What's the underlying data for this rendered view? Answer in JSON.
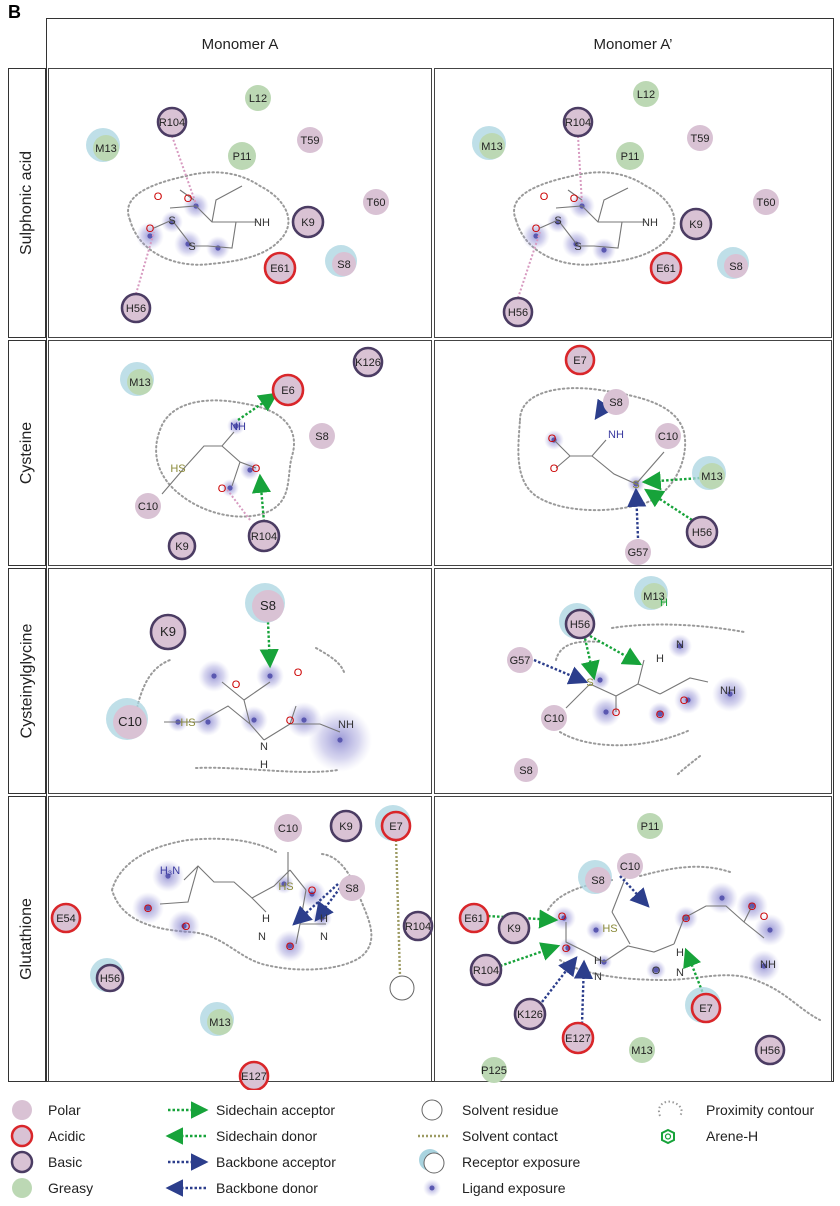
{
  "panel_letter": "B",
  "columns": [
    "Monomer A",
    "Monomer A’"
  ],
  "rows": [
    "Sulphonic acid",
    "Cysteine",
    "Cysteinylglycine",
    "Glutathione"
  ],
  "colors": {
    "polar": "#d9c2d4",
    "acidic_ring": "#d9262a",
    "basic_ring": "#4b3c63",
    "greasy": "#bcd8b4",
    "receptor_exposure": "#a9d4e0",
    "ligand_exposure": "#7b78c8",
    "sidechain": "#17a33a",
    "backbone": "#2c3e8c",
    "contour": "#9a9a9a",
    "solvent_contact": "#9c9a62"
  },
  "cells": [
    {
      "residues": [
        {
          "label": "L12",
          "type": "greasy"
        },
        {
          "label": "R104",
          "type": "basic"
        },
        {
          "label": "M13",
          "type": "greasy"
        },
        {
          "label": "P11",
          "type": "greasy"
        },
        {
          "label": "T59",
          "type": "polar"
        },
        {
          "label": "T60",
          "type": "polar"
        },
        {
          "label": "K9",
          "type": "basic"
        },
        {
          "label": "E61",
          "type": "acidic"
        },
        {
          "label": "S8",
          "type": "polar"
        },
        {
          "label": "H56",
          "type": "basic"
        }
      ],
      "atoms": [
        {
          "label": "O"
        },
        {
          "label": "O"
        },
        {
          "label": "S"
        },
        {
          "label": "O"
        },
        {
          "label": "S"
        },
        {
          "label": "NH"
        }
      ]
    },
    {
      "residues": [
        {
          "label": "L12",
          "type": "greasy"
        },
        {
          "label": "R104",
          "type": "basic"
        },
        {
          "label": "M13",
          "type": "greasy"
        },
        {
          "label": "P11",
          "type": "greasy"
        },
        {
          "label": "T59",
          "type": "polar"
        },
        {
          "label": "T60",
          "type": "polar"
        },
        {
          "label": "K9",
          "type": "basic"
        },
        {
          "label": "E61",
          "type": "acidic"
        },
        {
          "label": "S8",
          "type": "polar"
        },
        {
          "label": "H56",
          "type": "basic"
        }
      ],
      "atoms": [
        {
          "label": "O"
        },
        {
          "label": "O"
        },
        {
          "label": "S"
        },
        {
          "label": "O"
        },
        {
          "label": "S"
        },
        {
          "label": "NH"
        }
      ]
    },
    {
      "residues": [
        {
          "label": "K126",
          "type": "basic"
        },
        {
          "label": "M13",
          "type": "greasy"
        },
        {
          "label": "E6",
          "type": "acidic"
        },
        {
          "label": "S8",
          "type": "polar"
        },
        {
          "label": "C10",
          "type": "polar"
        },
        {
          "label": "K9",
          "type": "basic"
        },
        {
          "label": "R104",
          "type": "basic"
        }
      ],
      "atoms": [
        {
          "label": "NH"
        },
        {
          "label": "HS"
        },
        {
          "label": "O"
        },
        {
          "label": "O"
        }
      ]
    },
    {
      "residues": [
        {
          "label": "E7",
          "type": "acidic"
        },
        {
          "label": "S8",
          "type": "polar"
        },
        {
          "label": "C10",
          "type": "polar"
        },
        {
          "label": "M13",
          "type": "greasy"
        },
        {
          "label": "H56",
          "type": "basic"
        },
        {
          "label": "G57",
          "type": "polar"
        }
      ],
      "atoms": [
        {
          "label": "NH"
        },
        {
          "label": "O"
        },
        {
          "label": "O"
        },
        {
          "label": "S"
        }
      ]
    },
    {
      "residues": [
        {
          "label": "S8",
          "type": "polar"
        },
        {
          "label": "K9",
          "type": "basic"
        },
        {
          "label": "C10",
          "type": "polar"
        }
      ],
      "atoms": [
        {
          "label": "O"
        },
        {
          "label": "O"
        },
        {
          "label": "HS"
        },
        {
          "label": "O"
        },
        {
          "label": "N"
        },
        {
          "label": "H"
        },
        {
          "label": "NH"
        }
      ]
    },
    {
      "residues": [
        {
          "label": "M13",
          "type": "greasy"
        },
        {
          "label": "H56",
          "type": "basic"
        },
        {
          "label": "G57",
          "type": "polar"
        },
        {
          "label": "C10",
          "type": "polar"
        },
        {
          "label": "S8",
          "type": "polar"
        }
      ],
      "atoms": [
        {
          "label": "H"
        },
        {
          "label": "N"
        },
        {
          "label": "H"
        },
        {
          "label": "S"
        },
        {
          "label": "O"
        },
        {
          "label": "O"
        },
        {
          "label": "O"
        },
        {
          "label": "NH"
        }
      ]
    },
    {
      "residues": [
        {
          "label": "C10",
          "type": "polar"
        },
        {
          "label": "K9",
          "type": "basic"
        },
        {
          "label": "E7",
          "type": "acidic"
        },
        {
          "label": "S8",
          "type": "polar"
        },
        {
          "label": "E54",
          "type": "acidic"
        },
        {
          "label": "R104",
          "type": "basic"
        },
        {
          "label": "H56",
          "type": "basic"
        },
        {
          "label": "M13",
          "type": "greasy"
        },
        {
          "label": "E127",
          "type": "acidic"
        }
      ],
      "atoms": [
        {
          "label": "H₃N"
        },
        {
          "label": "O"
        },
        {
          "label": "O"
        },
        {
          "label": "HS"
        },
        {
          "label": "O"
        },
        {
          "label": "H"
        },
        {
          "label": "N"
        },
        {
          "label": "H"
        },
        {
          "label": "N"
        },
        {
          "label": "O"
        }
      ]
    },
    {
      "residues": [
        {
          "label": "P11",
          "type": "greasy"
        },
        {
          "label": "C10",
          "type": "polar"
        },
        {
          "label": "S8",
          "type": "polar"
        },
        {
          "label": "E61",
          "type": "acidic"
        },
        {
          "label": "K9",
          "type": "basic"
        },
        {
          "label": "R104",
          "type": "basic"
        },
        {
          "label": "K126",
          "type": "basic"
        },
        {
          "label": "E127",
          "type": "acidic"
        },
        {
          "label": "E7",
          "type": "acidic"
        },
        {
          "label": "M13",
          "type": "greasy"
        },
        {
          "label": "H56",
          "type": "basic"
        },
        {
          "label": "P125",
          "type": "greasy"
        }
      ],
      "atoms": [
        {
          "label": "HS"
        },
        {
          "label": "O"
        },
        {
          "label": "O"
        },
        {
          "label": "H"
        },
        {
          "label": "N"
        },
        {
          "label": "O"
        },
        {
          "label": "H"
        },
        {
          "label": "N"
        },
        {
          "label": "O"
        },
        {
          "label": "O"
        },
        {
          "label": "O"
        },
        {
          "label": "NH"
        }
      ]
    }
  ],
  "legend": [
    {
      "label": "Polar",
      "kind": "polar"
    },
    {
      "label": "Acidic",
      "kind": "acidic"
    },
    {
      "label": "Basic",
      "kind": "basic"
    },
    {
      "label": "Greasy",
      "kind": "greasy"
    },
    {
      "label": "Sidechain acceptor",
      "kind": "sc-acceptor"
    },
    {
      "label": "Sidechain donor",
      "kind": "sc-donor"
    },
    {
      "label": "Backbone acceptor",
      "kind": "bb-acceptor"
    },
    {
      "label": "Backbone donor",
      "kind": "bb-donor"
    },
    {
      "label": "Solvent residue",
      "kind": "solvent-residue"
    },
    {
      "label": "Solvent contact",
      "kind": "solvent-contact"
    },
    {
      "label": "Receptor exposure",
      "kind": "receptor-exposure"
    },
    {
      "label": "Ligand exposure",
      "kind": "ligand-exposure"
    },
    {
      "label": "Proximity contour",
      "kind": "proximity-contour"
    },
    {
      "label": "Arene-H",
      "kind": "arene-h"
    }
  ]
}
